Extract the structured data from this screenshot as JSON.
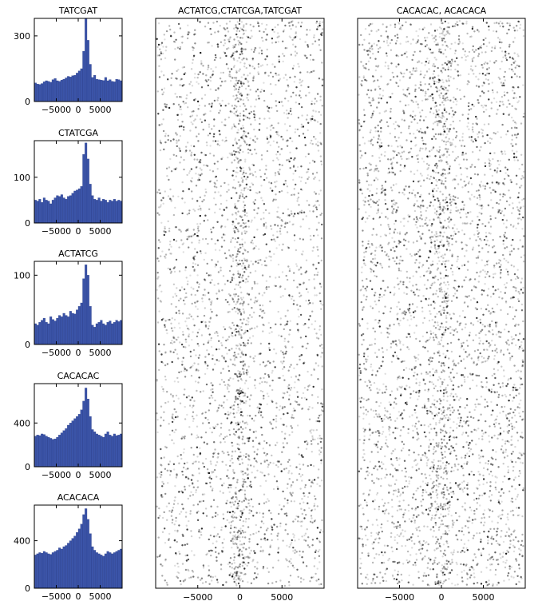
{
  "chart_data": [
    {
      "type": "bar",
      "title": "TATCGAT",
      "xlim": [
        -10000,
        10000
      ],
      "ylim": [
        0,
        380
      ],
      "xticks": [
        -5000,
        0,
        5000
      ],
      "xtick_labels": [
        "−5000",
        "0",
        "5000"
      ],
      "yticks": [
        0,
        300
      ],
      "bin_width": 500,
      "values": [
        85,
        80,
        78,
        82,
        90,
        95,
        92,
        88,
        100,
        105,
        95,
        92,
        98,
        102,
        108,
        115,
        112,
        118,
        120,
        130,
        140,
        150,
        230,
        380,
        280,
        170,
        110,
        120,
        102,
        100,
        98,
        96,
        110,
        95,
        100,
        92,
        90,
        102,
        100,
        95
      ],
      "color": "#3b54a8"
    },
    {
      "type": "bar",
      "title": "CTATCGA",
      "xlim": [
        -10000,
        10000
      ],
      "ylim": [
        0,
        180
      ],
      "xticks": [
        -5000,
        0,
        5000
      ],
      "xtick_labels": [
        "−5000",
        "0",
        "5000"
      ],
      "yticks": [
        0,
        100
      ],
      "bin_width": 500,
      "values": [
        50,
        48,
        52,
        45,
        55,
        50,
        48,
        42,
        50,
        55,
        60,
        58,
        62,
        55,
        52,
        58,
        60,
        65,
        70,
        72,
        75,
        80,
        150,
        175,
        140,
        85,
        60,
        52,
        50,
        55,
        48,
        52,
        50,
        45,
        50,
        48,
        52,
        48,
        50,
        48
      ],
      "color": "#3b54a8"
    },
    {
      "type": "bar",
      "title": "ACTATCG",
      "xlim": [
        -10000,
        10000
      ],
      "ylim": [
        0,
        120
      ],
      "xticks": [
        -5000,
        0,
        5000
      ],
      "xtick_labels": [
        "−5000",
        "0",
        "5000"
      ],
      "yticks": [
        0,
        100
      ],
      "bin_width": 500,
      "values": [
        30,
        28,
        32,
        35,
        38,
        32,
        30,
        40,
        36,
        34,
        38,
        42,
        40,
        45,
        42,
        40,
        48,
        45,
        44,
        50,
        55,
        60,
        95,
        115,
        100,
        55,
        28,
        25,
        30,
        32,
        35,
        30,
        28,
        32,
        34,
        30,
        32,
        35,
        33,
        35
      ],
      "color": "#3b54a8"
    },
    {
      "type": "bar",
      "title": "CACACAC",
      "xlim": [
        -10000,
        10000
      ],
      "ylim": [
        0,
        760
      ],
      "xticks": [
        -5000,
        0,
        5000
      ],
      "xtick_labels": [
        "−5000",
        "0",
        "5000"
      ],
      "yticks": [
        0,
        400
      ],
      "bin_width": 500,
      "values": [
        280,
        290,
        285,
        300,
        295,
        280,
        270,
        260,
        250,
        255,
        270,
        290,
        310,
        330,
        350,
        380,
        400,
        420,
        440,
        460,
        480,
        520,
        600,
        720,
        620,
        460,
        340,
        320,
        300,
        290,
        280,
        270,
        300,
        320,
        290,
        280,
        300,
        285,
        290,
        300
      ],
      "color": "#3b54a8"
    },
    {
      "type": "bar",
      "title": "ACACACA",
      "xlim": [
        -10000,
        10000
      ],
      "ylim": [
        0,
        700
      ],
      "xticks": [
        -5000,
        0,
        5000
      ],
      "xtick_labels": [
        "−5000",
        "0",
        "5000"
      ],
      "yticks": [
        0,
        400
      ],
      "bin_width": 500,
      "values": [
        280,
        290,
        300,
        295,
        310,
        300,
        290,
        285,
        300,
        310,
        320,
        340,
        330,
        350,
        360,
        380,
        400,
        420,
        440,
        470,
        500,
        540,
        620,
        670,
        580,
        460,
        350,
        320,
        300,
        290,
        280,
        270,
        290,
        310,
        300,
        290,
        300,
        310,
        320,
        330
      ],
      "color": "#3b54a8"
    },
    {
      "type": "scatter",
      "title": "ACTATCG,CTATCGA,TATCGAT",
      "xlim": [
        -10000,
        10000
      ],
      "xticks": [
        -5000,
        0,
        5000
      ],
      "xtick_labels": [
        "−5000",
        "0",
        "5000"
      ],
      "n_points": 3600,
      "center_fraction": 0.16,
      "center_spread": 600,
      "seed": 17,
      "color": "#000000"
    },
    {
      "type": "scatter",
      "title": "CACACAC, ACACACA",
      "xlim": [
        -10000,
        10000
      ],
      "xticks": [
        -5000,
        0,
        5000
      ],
      "xtick_labels": [
        "−5000",
        "0",
        "5000"
      ],
      "n_points": 4200,
      "center_fraction": 0.12,
      "center_spread": 700,
      "seed": 91,
      "color": "#000000"
    }
  ]
}
